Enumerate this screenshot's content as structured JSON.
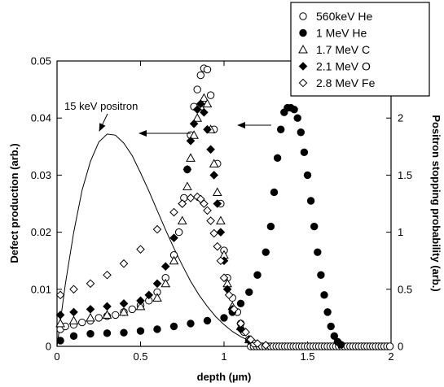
{
  "chart_data": {
    "type": "scatter",
    "title": "",
    "xlabel": "depth (µm)",
    "ylabel": "Defect production (arb.)",
    "y2label": "Positron stopping probability (arb.)",
    "xlim": [
      0,
      2
    ],
    "ylim": [
      0,
      0.05
    ],
    "y2lim": [
      0,
      2.5
    ],
    "x_ticks": [
      "0",
      "0.5",
      "1",
      "1.5",
      "2"
    ],
    "y_ticks": [
      "0",
      "0.01",
      "0.02",
      "0.03",
      "0.04",
      "0.05"
    ],
    "y2_ticks": [
      "0",
      "0.5",
      "1",
      "1.5",
      "2",
      "2.5"
    ],
    "grid": false,
    "legend_position": "top-right",
    "annotations": [
      {
        "text": "15 keV positron",
        "target": [
          0.31,
          0.0373
        ]
      }
    ],
    "series": [
      {
        "name": "560keV He",
        "marker": "circle-open",
        "points": [
          [
            0.02,
            0.003
          ],
          [
            0.05,
            0.0035
          ],
          [
            0.1,
            0.0038
          ],
          [
            0.15,
            0.0042
          ],
          [
            0.2,
            0.0045
          ],
          [
            0.25,
            0.005
          ],
          [
            0.3,
            0.0053
          ],
          [
            0.35,
            0.0055
          ],
          [
            0.4,
            0.006
          ],
          [
            0.45,
            0.0065
          ],
          [
            0.5,
            0.0072
          ],
          [
            0.55,
            0.008
          ],
          [
            0.6,
            0.0095
          ],
          [
            0.65,
            0.012
          ],
          [
            0.7,
            0.016
          ],
          [
            0.73,
            0.02
          ],
          [
            0.76,
            0.026
          ],
          [
            0.78,
            0.031
          ],
          [
            0.8,
            0.037
          ],
          [
            0.82,
            0.042
          ],
          [
            0.84,
            0.045
          ],
          [
            0.86,
            0.0475
          ],
          [
            0.88,
            0.0487
          ],
          [
            0.9,
            0.0485
          ],
          [
            0.92,
            0.044
          ],
          [
            0.94,
            0.038
          ],
          [
            0.96,
            0.032
          ],
          [
            0.98,
            0.025
          ],
          [
            1.0,
            0.0168
          ],
          [
            1.02,
            0.012
          ],
          [
            1.05,
            0.0085
          ],
          [
            1.08,
            0.006
          ],
          [
            1.1,
            0.004
          ],
          [
            1.12,
            0.0025
          ],
          [
            1.15,
            0.0012
          ],
          [
            1.18,
            0.0005
          ]
        ]
      },
      {
        "name": "1 MeV He",
        "marker": "circle-filled",
        "points": [
          [
            0.02,
            0.001
          ],
          [
            0.1,
            0.0018
          ],
          [
            0.2,
            0.0022
          ],
          [
            0.3,
            0.0023
          ],
          [
            0.4,
            0.0024
          ],
          [
            0.5,
            0.0027
          ],
          [
            0.6,
            0.003
          ],
          [
            0.7,
            0.0035
          ],
          [
            0.8,
            0.004
          ],
          [
            0.9,
            0.0045
          ],
          [
            1.0,
            0.005
          ],
          [
            1.05,
            0.006
          ],
          [
            1.1,
            0.0075
          ],
          [
            1.15,
            0.0095
          ],
          [
            1.2,
            0.0125
          ],
          [
            1.25,
            0.0165
          ],
          [
            1.28,
            0.021
          ],
          [
            1.3,
            0.027
          ],
          [
            1.32,
            0.033
          ],
          [
            1.34,
            0.038
          ],
          [
            1.36,
            0.041
          ],
          [
            1.38,
            0.0418
          ],
          [
            1.4,
            0.0418
          ],
          [
            1.42,
            0.0415
          ],
          [
            1.44,
            0.04
          ],
          [
            1.46,
            0.0375
          ],
          [
            1.48,
            0.034
          ],
          [
            1.5,
            0.03
          ],
          [
            1.52,
            0.0255
          ],
          [
            1.54,
            0.021
          ],
          [
            1.56,
            0.0165
          ],
          [
            1.58,
            0.0125
          ],
          [
            1.6,
            0.009
          ],
          [
            1.62,
            0.006
          ],
          [
            1.64,
            0.0035
          ],
          [
            1.66,
            0.0018
          ],
          [
            1.68,
            0.0008
          ],
          [
            1.7,
            0.0003
          ]
        ]
      },
      {
        "name": "1.7 MeV C",
        "marker": "triangle-open",
        "points": [
          [
            0.02,
            0.004
          ],
          [
            0.1,
            0.0045
          ],
          [
            0.2,
            0.005
          ],
          [
            0.3,
            0.0055
          ],
          [
            0.4,
            0.006
          ],
          [
            0.5,
            0.007
          ],
          [
            0.6,
            0.0085
          ],
          [
            0.65,
            0.011
          ],
          [
            0.7,
            0.015
          ],
          [
            0.75,
            0.022
          ],
          [
            0.78,
            0.028
          ],
          [
            0.8,
            0.033
          ],
          [
            0.82,
            0.037
          ],
          [
            0.84,
            0.04
          ],
          [
            0.86,
            0.042
          ],
          [
            0.88,
            0.0435
          ],
          [
            0.9,
            0.0425
          ],
          [
            0.92,
            0.038
          ],
          [
            0.94,
            0.032
          ],
          [
            0.96,
            0.027
          ],
          [
            0.98,
            0.022
          ],
          [
            1.0,
            0.016
          ],
          [
            1.02,
            0.011
          ],
          [
            1.05,
            0.007
          ],
          [
            1.1,
            0.0035
          ],
          [
            1.15,
            0.0012
          ]
        ]
      },
      {
        "name": "2.1 MeV O",
        "marker": "diamond-filled",
        "points": [
          [
            0.02,
            0.0055
          ],
          [
            0.1,
            0.006
          ],
          [
            0.2,
            0.0065
          ],
          [
            0.3,
            0.007
          ],
          [
            0.4,
            0.0075
          ],
          [
            0.5,
            0.008
          ],
          [
            0.55,
            0.009
          ],
          [
            0.6,
            0.011
          ],
          [
            0.65,
            0.014
          ],
          [
            0.7,
            0.019
          ],
          [
            0.75,
            0.025
          ],
          [
            0.78,
            0.031
          ],
          [
            0.8,
            0.036
          ],
          [
            0.82,
            0.039
          ],
          [
            0.84,
            0.0415
          ],
          [
            0.86,
            0.0425
          ],
          [
            0.88,
            0.041
          ],
          [
            0.9,
            0.038
          ],
          [
            0.92,
            0.0345
          ],
          [
            0.94,
            0.03
          ],
          [
            0.96,
            0.025
          ],
          [
            0.98,
            0.02
          ],
          [
            1.0,
            0.015
          ],
          [
            1.02,
            0.01
          ],
          [
            1.05,
            0.0065
          ],
          [
            1.1,
            0.003
          ],
          [
            1.15,
            0.001
          ]
        ]
      },
      {
        "name": "2.8 MeV Fe",
        "marker": "diamond-open",
        "points": [
          [
            0.02,
            0.009
          ],
          [
            0.1,
            0.01
          ],
          [
            0.2,
            0.011
          ],
          [
            0.3,
            0.0125
          ],
          [
            0.4,
            0.0145
          ],
          [
            0.5,
            0.017
          ],
          [
            0.6,
            0.0205
          ],
          [
            0.7,
            0.0235
          ],
          [
            0.75,
            0.025
          ],
          [
            0.8,
            0.026
          ],
          [
            0.84,
            0.0262
          ],
          [
            0.86,
            0.0258
          ],
          [
            0.88,
            0.025
          ],
          [
            0.9,
            0.0238
          ],
          [
            0.92,
            0.022
          ],
          [
            0.94,
            0.0198
          ],
          [
            0.96,
            0.0175
          ],
          [
            0.98,
            0.015
          ],
          [
            1.0,
            0.012
          ],
          [
            1.03,
            0.009
          ],
          [
            1.06,
            0.0065
          ],
          [
            1.1,
            0.004
          ],
          [
            1.13,
            0.0025
          ],
          [
            1.16,
            0.0012
          ],
          [
            1.2,
            0.0005
          ],
          [
            1.25,
            0.0002
          ]
        ]
      },
      {
        "marker": "line",
        "axis": "right",
        "points": [
          [
            0,
            0
          ],
          [
            0.05,
            0.55
          ],
          [
            0.1,
            1.0
          ],
          [
            0.15,
            1.37
          ],
          [
            0.2,
            1.62
          ],
          [
            0.25,
            1.79
          ],
          [
            0.3,
            1.86
          ],
          [
            0.35,
            1.85
          ],
          [
            0.4,
            1.78
          ],
          [
            0.45,
            1.67
          ],
          [
            0.5,
            1.52
          ],
          [
            0.55,
            1.36
          ],
          [
            0.6,
            1.19
          ],
          [
            0.65,
            1.02
          ],
          [
            0.7,
            0.86
          ],
          [
            0.75,
            0.71
          ],
          [
            0.8,
            0.57
          ],
          [
            0.85,
            0.45
          ],
          [
            0.9,
            0.35
          ],
          [
            0.95,
            0.26
          ],
          [
            1.0,
            0.19
          ],
          [
            1.05,
            0.13
          ],
          [
            1.1,
            0.085
          ],
          [
            1.15,
            0.05
          ],
          [
            1.2,
            0.025
          ],
          [
            1.25,
            0.01
          ],
          [
            1.3,
            0.003
          ],
          [
            1.35,
            0
          ]
        ]
      }
    ],
    "baseline": {
      "x_start": 1.16,
      "x_end": 2.0,
      "step": 0.017,
      "value": 0
    }
  }
}
